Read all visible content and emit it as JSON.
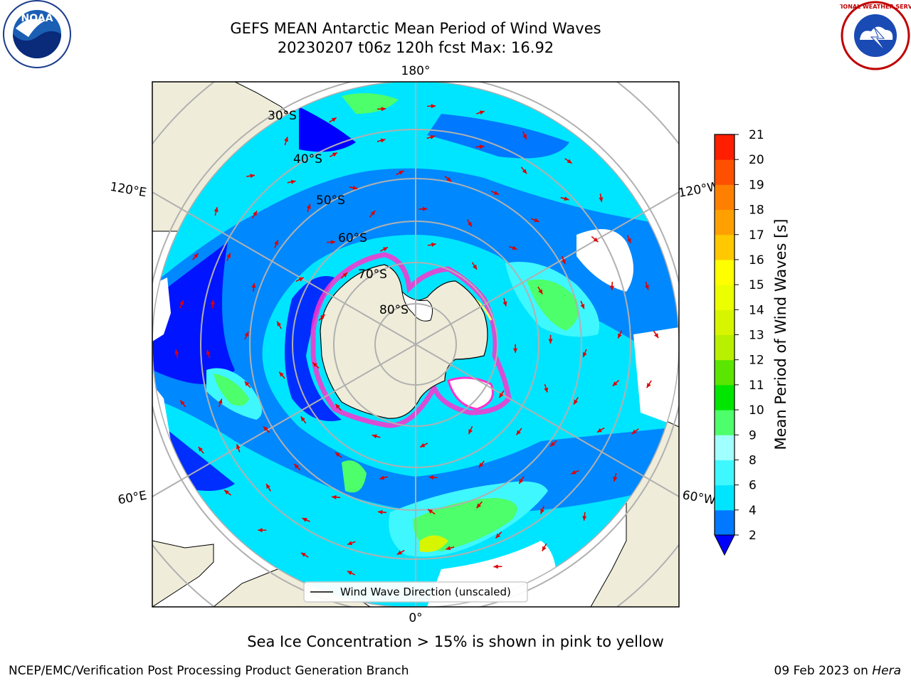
{
  "title": {
    "line1": "GEFS MEAN Antarctic Mean Period of Wind Waves",
    "line2": "20230207 t06z 120h fcst   Max: 16.92"
  },
  "map": {
    "projection": "south polar stereographic",
    "longitude_labels": {
      "top": "180°",
      "bottom": "0°",
      "upper_left": "120°E",
      "lower_left": "60°E",
      "upper_right": "120°W",
      "lower_right": "60°W"
    },
    "latitude_labels": [
      "30°S",
      "40°S",
      "50°S",
      "60°S",
      "70°S",
      "80°S"
    ],
    "legend": "Wind Wave Direction (unscaled)",
    "arrow_color": "#e00000",
    "land_color": "#efedda",
    "ice_colors": [
      "#ff33cc",
      "#ffff66"
    ]
  },
  "colorbar": {
    "title": "Mean Period of Wind Waves [s]",
    "ticks": [
      "2",
      "4",
      "6",
      "8",
      "9",
      "10",
      "11",
      "12",
      "13",
      "14",
      "15",
      "16",
      "17",
      "18",
      "19",
      "20",
      "21"
    ],
    "colors": [
      "#0078ff",
      "#00e5ff",
      "#3ff7ff",
      "#a0ffff",
      "#4dff6a",
      "#00e600",
      "#5ae600",
      "#b8f000",
      "#d8f500",
      "#ecff00",
      "#ffff00",
      "#ffc800",
      "#ffa000",
      "#ff8000",
      "#ff5000",
      "#ff1e00",
      "#ff0000"
    ],
    "under_color": "#0000ff"
  },
  "caption": "Sea Ice Concentration > 15% is shown in pink to yellow",
  "footer": {
    "left": "NCEP/EMC/Verification Post Processing Product Generation Branch",
    "date": "09 Feb 2023 on ",
    "machine": "Hera"
  },
  "logos": {
    "left": "NOAA",
    "right": "NATIONAL WEATHER SERVICE"
  }
}
